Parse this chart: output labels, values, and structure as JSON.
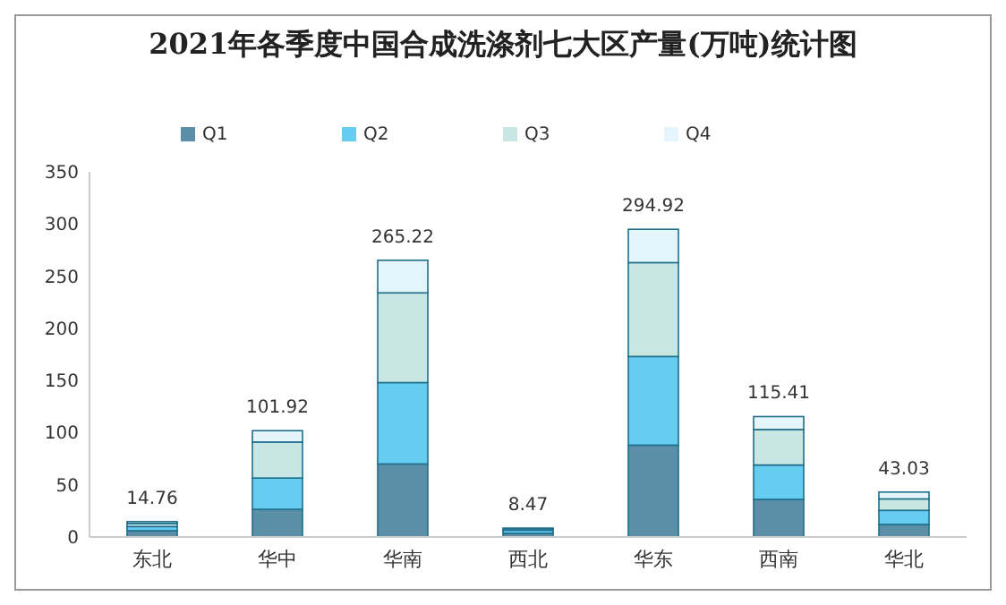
{
  "chart_data": {
    "type": "bar",
    "title": "2021年各季度中国合成洗涤剂七大区产量(万吨)统计图",
    "categories": [
      "东北",
      "华中",
      "华南",
      "西北",
      "华东",
      "西南",
      "华北"
    ],
    "stacked": true,
    "legend": "top",
    "ylim": [
      0,
      350
    ],
    "yticks": [
      0,
      50,
      100,
      150,
      200,
      250,
      300,
      350
    ],
    "series": [
      {
        "name": "Q1",
        "color": "#5b8fa8",
        "values": [
          6,
          26.5,
          70,
          3.5,
          88,
          36,
          12
        ]
      },
      {
        "name": "Q2",
        "color": "#66ccf0",
        "values": [
          4,
          30,
          78,
          3,
          85,
          33,
          13.5
        ]
      },
      {
        "name": "Q3",
        "color": "#c8e6e4",
        "values": [
          3,
          34.5,
          86,
          1.5,
          90,
          34,
          11
        ]
      },
      {
        "name": "Q4",
        "color": "#e4f6fb",
        "values": [
          1.76,
          10.92,
          31.22,
          0.47,
          31.92,
          12.41,
          6.53
        ]
      }
    ],
    "totals": [
      "14.76",
      "101.92",
      "265.22",
      "8.47",
      "294.92",
      "115.41",
      "43.03"
    ]
  }
}
